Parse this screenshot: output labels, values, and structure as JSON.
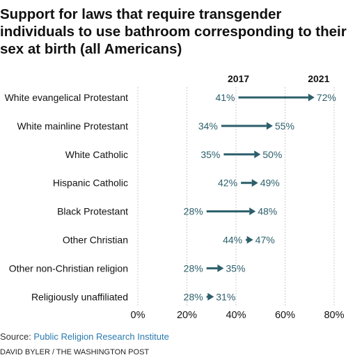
{
  "title": "Support for laws that require transgender individuals to use bathroom corresponding to their sex at birth (all Americans)",
  "footer": {
    "source_prefix": "Source: ",
    "source_link": "Public Religion Research Institute",
    "credit": "DAVID BYLER / THE WASHINGTON POST"
  },
  "colors": {
    "arrow": "#2c5f6b",
    "grid": "#cccccc",
    "text": "#111111"
  },
  "chart_data": {
    "type": "dumbbell-arrow",
    "title": "Support for laws that require transgender individuals to use bathroom corresponding to their sex at birth (all Americans)",
    "series_start_label": "2017",
    "series_end_label": "2021",
    "xlim": [
      0,
      80
    ],
    "xticks": [
      "0%",
      "20%",
      "40%",
      "60%",
      "80%"
    ],
    "xtick_values": [
      0,
      20,
      40,
      60,
      80
    ],
    "grid": true,
    "rows": [
      {
        "category": "White evangelical Protestant",
        "start": 41,
        "end": 72,
        "start_label": "41%",
        "end_label": "72%"
      },
      {
        "category": "White mainline Protestant",
        "start": 34,
        "end": 55,
        "start_label": "34%",
        "end_label": "55%"
      },
      {
        "category": "White Catholic",
        "start": 35,
        "end": 50,
        "start_label": "35%",
        "end_label": "50%"
      },
      {
        "category": "Hispanic Catholic",
        "start": 42,
        "end": 49,
        "start_label": "42%",
        "end_label": "49%"
      },
      {
        "category": "Black Protestant",
        "start": 28,
        "end": 48,
        "start_label": "28%",
        "end_label": "48%"
      },
      {
        "category": "Other Christian",
        "start": 44,
        "end": 47,
        "start_label": "44%",
        "end_label": "47%"
      },
      {
        "category": "Other non-Christian religion",
        "start": 28,
        "end": 35,
        "start_label": "28%",
        "end_label": "35%"
      },
      {
        "category": "Religiously unaffiliated",
        "start": 28,
        "end": 31,
        "start_label": "28%",
        "end_label": "31%"
      }
    ]
  }
}
